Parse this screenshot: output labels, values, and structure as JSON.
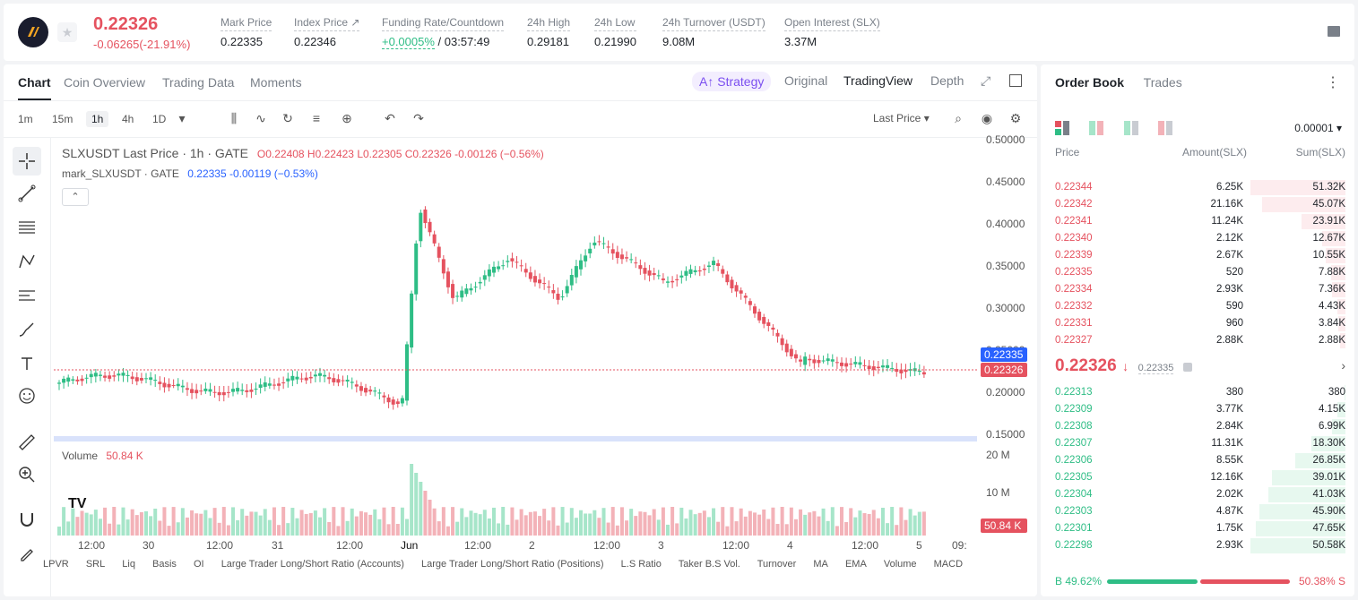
{
  "header": {
    "last_price": "0.22326",
    "change": "-0.06265(-21.91%)",
    "stats": [
      {
        "label": "Mark Price",
        "value": "0.22335"
      },
      {
        "label": "Index Price ↗",
        "value": "0.22346"
      },
      {
        "label": "Funding Rate/Countdown",
        "value_green": "+0.0005%",
        "value": " / 03:57:49"
      },
      {
        "label": "24h High",
        "value": "0.29181"
      },
      {
        "label": "24h Low",
        "value": "0.21990"
      },
      {
        "label": "24h Turnover (USDT)",
        "value": "9.08M"
      },
      {
        "label": "Open Interest (SLX)",
        "value": "3.37M"
      }
    ]
  },
  "chart_tabs": [
    "Chart",
    "Coin Overview",
    "Trading Data",
    "Moments"
  ],
  "chart_views": {
    "strategy": "Strategy",
    "original": "Original",
    "tradingview": "TradingView",
    "depth": "Depth"
  },
  "timeframes": [
    "1m",
    "15m",
    "1h",
    "4h",
    "1D"
  ],
  "price_type": "Last Price",
  "legend": {
    "symbol": "SLXUSDT Last Price · 1h · GATE",
    "ohlc": "O0.22408  H0.22423  L0.22305  C0.22326  -0.00126 (−0.56%)",
    "mark_label": "mark_SLXUSDT · GATE",
    "mark_values": "0.22335  -0.00119 (−0.53%)",
    "volume_label": "Volume",
    "volume_value": "50.84 K"
  },
  "y_axis": [
    "0.50000",
    "0.45000",
    "0.40000",
    "0.35000",
    "0.30000",
    "0.25000",
    "0.20000",
    "0.15000"
  ],
  "vol_axis": [
    "20 M",
    "10 M"
  ],
  "price_tags": {
    "mark": "0.22335",
    "last": "0.22326",
    "vol": "50.84 K"
  },
  "x_axis": [
    "12:00",
    "30",
    "12:00",
    "31",
    "12:00",
    "Jun",
    "12:00",
    "2",
    "12:00",
    "3",
    "12:00",
    "4",
    "12:00",
    "5",
    "09:"
  ],
  "indicators": [
    "LPVR",
    "SRL",
    "Liq",
    "Basis",
    "OI",
    "Large Trader Long/Short Ratio (Accounts)",
    "Large Trader Long/Short Ratio (Positions)",
    "L.S Ratio",
    "Taker B.S Vol.",
    "Turnover",
    "MA",
    "EMA",
    "Volume",
    "MACD"
  ],
  "orderbook": {
    "tabs": [
      "Order Book",
      "Trades"
    ],
    "precision": "0.00001",
    "headers": {
      "price": "Price",
      "amount": "Amount(SLX)",
      "sum": "Sum(SLX)"
    },
    "asks": [
      {
        "price": "0.22344",
        "amount": "6.25K",
        "sum": "51.32K",
        "depth": 1.0
      },
      {
        "price": "0.22342",
        "amount": "21.16K",
        "sum": "45.07K",
        "depth": 0.878
      },
      {
        "price": "0.22341",
        "amount": "11.24K",
        "sum": "23.91K",
        "depth": 0.466
      },
      {
        "price": "0.22340",
        "amount": "2.12K",
        "sum": "12.67K",
        "depth": 0.247
      },
      {
        "price": "0.22339",
        "amount": "2.67K",
        "sum": "10.55K",
        "depth": 0.206
      },
      {
        "price": "0.22335",
        "amount": "520",
        "sum": "7.88K",
        "depth": 0.154
      },
      {
        "price": "0.22334",
        "amount": "2.93K",
        "sum": "7.36K",
        "depth": 0.143
      },
      {
        "price": "0.22332",
        "amount": "590",
        "sum": "4.43K",
        "depth": 0.086
      },
      {
        "price": "0.22331",
        "amount": "960",
        "sum": "3.84K",
        "depth": 0.075
      },
      {
        "price": "0.22327",
        "amount": "2.88K",
        "sum": "2.88K",
        "depth": 0.056
      }
    ],
    "mid": {
      "price": "0.22326",
      "mark": "0.22335"
    },
    "bids": [
      {
        "price": "0.22313",
        "amount": "380",
        "sum": "380",
        "depth": 0.008
      },
      {
        "price": "0.22309",
        "amount": "3.77K",
        "sum": "4.15K",
        "depth": 0.082
      },
      {
        "price": "0.22308",
        "amount": "2.84K",
        "sum": "6.99K",
        "depth": 0.138
      },
      {
        "price": "0.22307",
        "amount": "11.31K",
        "sum": "18.30K",
        "depth": 0.362
      },
      {
        "price": "0.22306",
        "amount": "8.55K",
        "sum": "26.85K",
        "depth": 0.531
      },
      {
        "price": "0.22305",
        "amount": "12.16K",
        "sum": "39.01K",
        "depth": 0.771
      },
      {
        "price": "0.22304",
        "amount": "2.02K",
        "sum": "41.03K",
        "depth": 0.811
      },
      {
        "price": "0.22303",
        "amount": "4.87K",
        "sum": "45.90K",
        "depth": 0.907
      },
      {
        "price": "0.22301",
        "amount": "1.75K",
        "sum": "47.65K",
        "depth": 0.942
      },
      {
        "price": "0.22298",
        "amount": "2.93K",
        "sum": "50.58K",
        "depth": 1.0
      }
    ],
    "ratio": {
      "buy": "B 49.62%",
      "sell": "50.38% S",
      "buy_frac": 0.4962
    }
  },
  "colors": {
    "up": "#2ebd85",
    "down": "#e5525f",
    "accent": "#7b4ff0"
  }
}
